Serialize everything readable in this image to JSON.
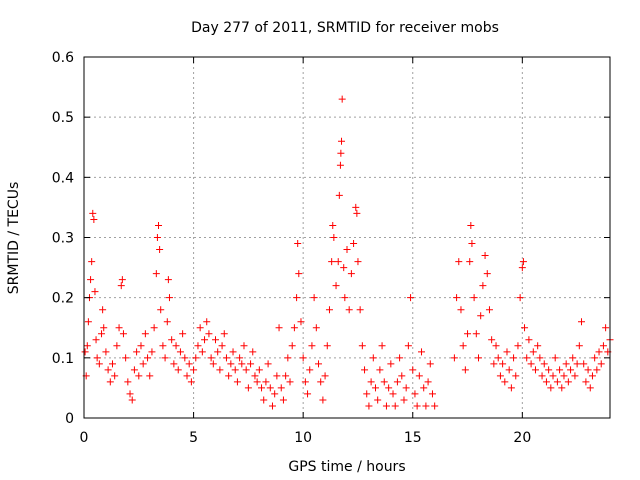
{
  "chart_data": {
    "type": "scatter",
    "title": "Day 277 of 2011, SRMTID for receiver mobs",
    "xlabel": "GPS time / hours",
    "ylabel": "SRMTID / TECUs",
    "xlim": [
      0,
      24
    ],
    "ylim": [
      0,
      0.6
    ],
    "xticks": [
      0,
      5,
      10,
      15,
      20
    ],
    "xtick_labels": [
      "0",
      "5",
      "10",
      "15",
      "20"
    ],
    "yticks": [
      0,
      0.1,
      0.2,
      0.3,
      0.4,
      0.5,
      0.6
    ],
    "ytick_labels": [
      "0",
      "0.1",
      "0.2",
      "0.3",
      "0.4",
      "0.5",
      "0.6"
    ],
    "grid": true,
    "marker": "+",
    "marker_color": "#ff0000",
    "series": [
      {
        "name": "SRMTID",
        "points": [
          [
            0.05,
            0.11
          ],
          [
            0.1,
            0.07
          ],
          [
            0.15,
            0.12
          ],
          [
            0.2,
            0.16
          ],
          [
            0.25,
            0.2
          ],
          [
            0.3,
            0.23
          ],
          [
            0.35,
            0.26
          ],
          [
            0.4,
            0.34
          ],
          [
            0.45,
            0.33
          ],
          [
            0.5,
            0.21
          ],
          [
            0.55,
            0.13
          ],
          [
            0.6,
            0.1
          ],
          [
            0.7,
            0.09
          ],
          [
            0.8,
            0.14
          ],
          [
            0.85,
            0.18
          ],
          [
            0.9,
            0.15
          ],
          [
            1.0,
            0.11
          ],
          [
            1.1,
            0.08
          ],
          [
            1.2,
            0.06
          ],
          [
            1.3,
            0.09
          ],
          [
            1.4,
            0.07
          ],
          [
            1.5,
            0.12
          ],
          [
            1.6,
            0.15
          ],
          [
            1.7,
            0.22
          ],
          [
            1.75,
            0.23
          ],
          [
            1.8,
            0.14
          ],
          [
            1.9,
            0.1
          ],
          [
            2.0,
            0.06
          ],
          [
            2.1,
            0.04
          ],
          [
            2.2,
            0.03
          ],
          [
            2.3,
            0.08
          ],
          [
            2.4,
            0.11
          ],
          [
            2.5,
            0.07
          ],
          [
            2.6,
            0.12
          ],
          [
            2.7,
            0.09
          ],
          [
            2.8,
            0.14
          ],
          [
            2.9,
            0.1
          ],
          [
            3.0,
            0.07
          ],
          [
            3.1,
            0.11
          ],
          [
            3.2,
            0.15
          ],
          [
            3.3,
            0.24
          ],
          [
            3.35,
            0.3
          ],
          [
            3.4,
            0.32
          ],
          [
            3.45,
            0.28
          ],
          [
            3.5,
            0.18
          ],
          [
            3.6,
            0.12
          ],
          [
            3.7,
            0.1
          ],
          [
            3.8,
            0.16
          ],
          [
            3.85,
            0.23
          ],
          [
            3.9,
            0.2
          ],
          [
            4.0,
            0.13
          ],
          [
            4.1,
            0.09
          ],
          [
            4.2,
            0.12
          ],
          [
            4.3,
            0.08
          ],
          [
            4.4,
            0.11
          ],
          [
            4.5,
            0.14
          ],
          [
            4.6,
            0.1
          ],
          [
            4.7,
            0.07
          ],
          [
            4.8,
            0.09
          ],
          [
            4.9,
            0.06
          ],
          [
            5.0,
            0.08
          ],
          [
            5.1,
            0.1
          ],
          [
            5.2,
            0.12
          ],
          [
            5.3,
            0.15
          ],
          [
            5.4,
            0.11
          ],
          [
            5.5,
            0.13
          ],
          [
            5.6,
            0.16
          ],
          [
            5.7,
            0.14
          ],
          [
            5.8,
            0.1
          ],
          [
            5.9,
            0.09
          ],
          [
            6.0,
            0.13
          ],
          [
            6.1,
            0.11
          ],
          [
            6.2,
            0.08
          ],
          [
            6.3,
            0.12
          ],
          [
            6.4,
            0.14
          ],
          [
            6.5,
            0.1
          ],
          [
            6.6,
            0.07
          ],
          [
            6.7,
            0.09
          ],
          [
            6.8,
            0.11
          ],
          [
            6.9,
            0.08
          ],
          [
            7.0,
            0.06
          ],
          [
            7.1,
            0.1
          ],
          [
            7.2,
            0.09
          ],
          [
            7.3,
            0.12
          ],
          [
            7.4,
            0.08
          ],
          [
            7.5,
            0.05
          ],
          [
            7.6,
            0.09
          ],
          [
            7.7,
            0.11
          ],
          [
            7.8,
            0.07
          ],
          [
            7.9,
            0.06
          ],
          [
            8.0,
            0.08
          ],
          [
            8.1,
            0.05
          ],
          [
            8.2,
            0.03
          ],
          [
            8.3,
            0.06
          ],
          [
            8.4,
            0.09
          ],
          [
            8.5,
            0.05
          ],
          [
            8.6,
            0.02
          ],
          [
            8.7,
            0.04
          ],
          [
            8.8,
            0.07
          ],
          [
            8.9,
            0.15
          ],
          [
            9.0,
            0.05
          ],
          [
            9.1,
            0.03
          ],
          [
            9.2,
            0.07
          ],
          [
            9.3,
            0.1
          ],
          [
            9.4,
            0.06
          ],
          [
            9.5,
            0.12
          ],
          [
            9.6,
            0.15
          ],
          [
            9.7,
            0.2
          ],
          [
            9.75,
            0.29
          ],
          [
            9.8,
            0.24
          ],
          [
            9.9,
            0.16
          ],
          [
            10.0,
            0.1
          ],
          [
            10.1,
            0.06
          ],
          [
            10.2,
            0.04
          ],
          [
            10.3,
            0.08
          ],
          [
            10.4,
            0.12
          ],
          [
            10.5,
            0.2
          ],
          [
            10.6,
            0.15
          ],
          [
            10.7,
            0.09
          ],
          [
            10.8,
            0.06
          ],
          [
            10.9,
            0.03
          ],
          [
            11.0,
            0.07
          ],
          [
            11.1,
            0.12
          ],
          [
            11.2,
            0.18
          ],
          [
            11.3,
            0.26
          ],
          [
            11.35,
            0.32
          ],
          [
            11.4,
            0.3
          ],
          [
            11.5,
            0.22
          ],
          [
            11.6,
            0.26
          ],
          [
            11.65,
            0.37
          ],
          [
            11.7,
            0.42
          ],
          [
            11.72,
            0.44
          ],
          [
            11.75,
            0.46
          ],
          [
            11.78,
            0.53
          ],
          [
            11.85,
            0.25
          ],
          [
            11.9,
            0.2
          ],
          [
            12.0,
            0.28
          ],
          [
            12.1,
            0.18
          ],
          [
            12.2,
            0.24
          ],
          [
            12.3,
            0.29
          ],
          [
            12.4,
            0.35
          ],
          [
            12.45,
            0.34
          ],
          [
            12.5,
            0.26
          ],
          [
            12.6,
            0.18
          ],
          [
            12.7,
            0.12
          ],
          [
            12.8,
            0.08
          ],
          [
            12.9,
            0.04
          ],
          [
            13.0,
            0.02
          ],
          [
            13.1,
            0.06
          ],
          [
            13.2,
            0.1
          ],
          [
            13.3,
            0.05
          ],
          [
            13.4,
            0.03
          ],
          [
            13.5,
            0.08
          ],
          [
            13.6,
            0.12
          ],
          [
            13.7,
            0.06
          ],
          [
            13.8,
            0.02
          ],
          [
            13.9,
            0.05
          ],
          [
            14.0,
            0.09
          ],
          [
            14.1,
            0.04
          ],
          [
            14.2,
            0.02
          ],
          [
            14.3,
            0.06
          ],
          [
            14.4,
            0.1
          ],
          [
            14.5,
            0.07
          ],
          [
            14.6,
            0.03
          ],
          [
            14.7,
            0.05
          ],
          [
            14.8,
            0.12
          ],
          [
            14.9,
            0.2
          ],
          [
            15.0,
            0.08
          ],
          [
            15.1,
            0.04
          ],
          [
            15.2,
            0.02
          ],
          [
            15.3,
            0.07
          ],
          [
            15.4,
            0.11
          ],
          [
            15.5,
            0.05
          ],
          [
            15.6,
            0.02
          ],
          [
            15.7,
            0.06
          ],
          [
            15.8,
            0.09
          ],
          [
            15.9,
            0.04
          ],
          [
            16.0,
            0.02
          ],
          [
            16.9,
            0.1
          ],
          [
            17.0,
            0.2
          ],
          [
            17.1,
            0.26
          ],
          [
            17.2,
            0.18
          ],
          [
            17.3,
            0.12
          ],
          [
            17.4,
            0.08
          ],
          [
            17.5,
            0.14
          ],
          [
            17.6,
            0.26
          ],
          [
            17.65,
            0.32
          ],
          [
            17.7,
            0.29
          ],
          [
            17.8,
            0.2
          ],
          [
            17.9,
            0.14
          ],
          [
            18.0,
            0.1
          ],
          [
            18.1,
            0.17
          ],
          [
            18.2,
            0.22
          ],
          [
            18.3,
            0.27
          ],
          [
            18.4,
            0.24
          ],
          [
            18.5,
            0.18
          ],
          [
            18.6,
            0.13
          ],
          [
            18.7,
            0.09
          ],
          [
            18.8,
            0.12
          ],
          [
            18.9,
            0.1
          ],
          [
            19.0,
            0.07
          ],
          [
            19.1,
            0.09
          ],
          [
            19.2,
            0.06
          ],
          [
            19.3,
            0.11
          ],
          [
            19.4,
            0.08
          ],
          [
            19.5,
            0.05
          ],
          [
            19.6,
            0.1
          ],
          [
            19.7,
            0.07
          ],
          [
            19.8,
            0.12
          ],
          [
            19.9,
            0.2
          ],
          [
            20.0,
            0.25
          ],
          [
            20.05,
            0.26
          ],
          [
            20.1,
            0.15
          ],
          [
            20.2,
            0.1
          ],
          [
            20.3,
            0.13
          ],
          [
            20.4,
            0.09
          ],
          [
            20.5,
            0.11
          ],
          [
            20.6,
            0.08
          ],
          [
            20.7,
            0.12
          ],
          [
            20.8,
            0.1
          ],
          [
            20.9,
            0.07
          ],
          [
            21.0,
            0.09
          ],
          [
            21.1,
            0.06
          ],
          [
            21.2,
            0.08
          ],
          [
            21.3,
            0.05
          ],
          [
            21.4,
            0.07
          ],
          [
            21.5,
            0.1
          ],
          [
            21.6,
            0.06
          ],
          [
            21.7,
            0.08
          ],
          [
            21.8,
            0.05
          ],
          [
            21.9,
            0.07
          ],
          [
            22.0,
            0.09
          ],
          [
            22.1,
            0.06
          ],
          [
            22.2,
            0.08
          ],
          [
            22.3,
            0.1
          ],
          [
            22.4,
            0.07
          ],
          [
            22.5,
            0.09
          ],
          [
            22.6,
            0.12
          ],
          [
            22.7,
            0.16
          ],
          [
            22.8,
            0.09
          ],
          [
            22.9,
            0.06
          ],
          [
            23.0,
            0.08
          ],
          [
            23.1,
            0.05
          ],
          [
            23.2,
            0.07
          ],
          [
            23.3,
            0.1
          ],
          [
            23.4,
            0.08
          ],
          [
            23.5,
            0.11
          ],
          [
            23.6,
            0.09
          ],
          [
            23.7,
            0.12
          ],
          [
            23.8,
            0.15
          ],
          [
            23.9,
            0.11
          ],
          [
            24.0,
            0.13
          ]
        ]
      }
    ]
  }
}
